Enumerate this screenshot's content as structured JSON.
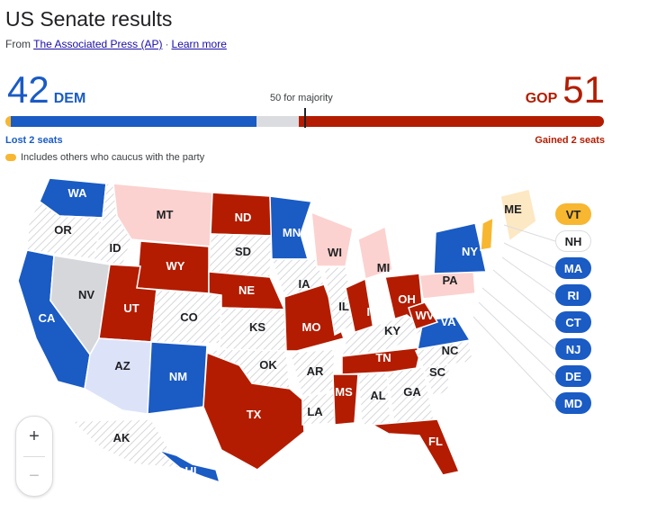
{
  "header": {
    "title": "US Senate results",
    "source_prefix": "From",
    "source_link": "The Associated Press (AP)",
    "separator": "·",
    "learn_more": "Learn more"
  },
  "summary": {
    "dem_count": "42",
    "dem_label": "DEM",
    "gop_count": "51",
    "gop_label": "GOP",
    "majority_label": "50 for majority",
    "dem_change": "Lost 2 seats",
    "gop_change": "Gained 2 seats",
    "note": "Includes others who caucus with the party",
    "dem_seats": 42,
    "gop_seats": 51,
    "total_seats": 100,
    "majority_seats": 50
  },
  "colors": {
    "dem": "#1a5bc4",
    "gop": "#b31c00",
    "lean_gop": "#fbd2cf",
    "lean_dem": "#dce3f9",
    "independent": "#f7b731",
    "lean_ind": "#fde8c4",
    "no_race": "#d5d7db",
    "no_race_hatch": "#ffffff",
    "ind_pill": "#f7b731",
    "neutral": "#ffffff"
  },
  "states": [
    {
      "code": "WA",
      "label": "WA",
      "status": "dem"
    },
    {
      "code": "OR",
      "label": "OR",
      "status": "none"
    },
    {
      "code": "CA",
      "label": "CA",
      "status": "dem"
    },
    {
      "code": "NV",
      "label": "NV",
      "status": "gray"
    },
    {
      "code": "ID",
      "label": "ID",
      "status": "none"
    },
    {
      "code": "MT",
      "label": "MT",
      "status": "lean_gop"
    },
    {
      "code": "WY",
      "label": "WY",
      "status": "gop"
    },
    {
      "code": "UT",
      "label": "UT",
      "status": "gop"
    },
    {
      "code": "AZ",
      "label": "AZ",
      "status": "lean_dem"
    },
    {
      "code": "CO",
      "label": "CO",
      "status": "none"
    },
    {
      "code": "NM",
      "label": "NM",
      "status": "dem"
    },
    {
      "code": "ND",
      "label": "ND",
      "status": "gop"
    },
    {
      "code": "SD",
      "label": "SD",
      "status": "none"
    },
    {
      "code": "NE",
      "label": "NE",
      "status": "gop"
    },
    {
      "code": "KS",
      "label": "KS",
      "status": "none"
    },
    {
      "code": "OK",
      "label": "OK",
      "status": "none"
    },
    {
      "code": "TX",
      "label": "TX",
      "status": "gop"
    },
    {
      "code": "MN",
      "label": "MN",
      "status": "dem"
    },
    {
      "code": "IA",
      "label": "IA",
      "status": "none"
    },
    {
      "code": "MO",
      "label": "MO",
      "status": "gop"
    },
    {
      "code": "AR",
      "label": "AR",
      "status": "none"
    },
    {
      "code": "LA",
      "label": "LA",
      "status": "none"
    },
    {
      "code": "WI",
      "label": "WI",
      "status": "lean_gop"
    },
    {
      "code": "IL",
      "label": "IL",
      "status": "none"
    },
    {
      "code": "MI",
      "label": "MI",
      "status": "lean_gop"
    },
    {
      "code": "IN",
      "label": "IN",
      "status": "gop"
    },
    {
      "code": "OH",
      "label": "OH",
      "status": "gop"
    },
    {
      "code": "KY",
      "label": "KY",
      "status": "none"
    },
    {
      "code": "TN",
      "label": "TN",
      "status": "gop"
    },
    {
      "code": "MS",
      "label": "MS",
      "status": "gop"
    },
    {
      "code": "AL",
      "label": "AL",
      "status": "none"
    },
    {
      "code": "GA",
      "label": "GA",
      "status": "none"
    },
    {
      "code": "FL",
      "label": "FL",
      "status": "gop"
    },
    {
      "code": "SC",
      "label": "SC",
      "status": "none"
    },
    {
      "code": "NC",
      "label": "NC",
      "status": "none"
    },
    {
      "code": "VA",
      "label": "VA",
      "status": "dem"
    },
    {
      "code": "WV",
      "label": "WV",
      "status": "gop"
    },
    {
      "code": "PA",
      "label": "PA",
      "status": "lean_gop"
    },
    {
      "code": "NY",
      "label": "NY",
      "status": "dem"
    },
    {
      "code": "ME",
      "label": "ME",
      "status": "lean_ind"
    },
    {
      "code": "AK",
      "label": "AK",
      "status": "none"
    },
    {
      "code": "HI",
      "label": "HI",
      "status": "dem"
    }
  ],
  "small_states": [
    {
      "code": "VT",
      "label": "VT",
      "status": "ind"
    },
    {
      "code": "NH",
      "label": "NH",
      "status": "none"
    },
    {
      "code": "MA",
      "label": "MA",
      "status": "dem"
    },
    {
      "code": "RI",
      "label": "RI",
      "status": "dem"
    },
    {
      "code": "CT",
      "label": "CT",
      "status": "dem"
    },
    {
      "code": "NJ",
      "label": "NJ",
      "status": "dem"
    },
    {
      "code": "DE",
      "label": "DE",
      "status": "dem"
    },
    {
      "code": "MD",
      "label": "MD",
      "status": "dem"
    }
  ],
  "zoom": {
    "in_icon": "plus-icon",
    "in_label": "+",
    "out_icon": "minus-icon",
    "out_label": "−"
  }
}
